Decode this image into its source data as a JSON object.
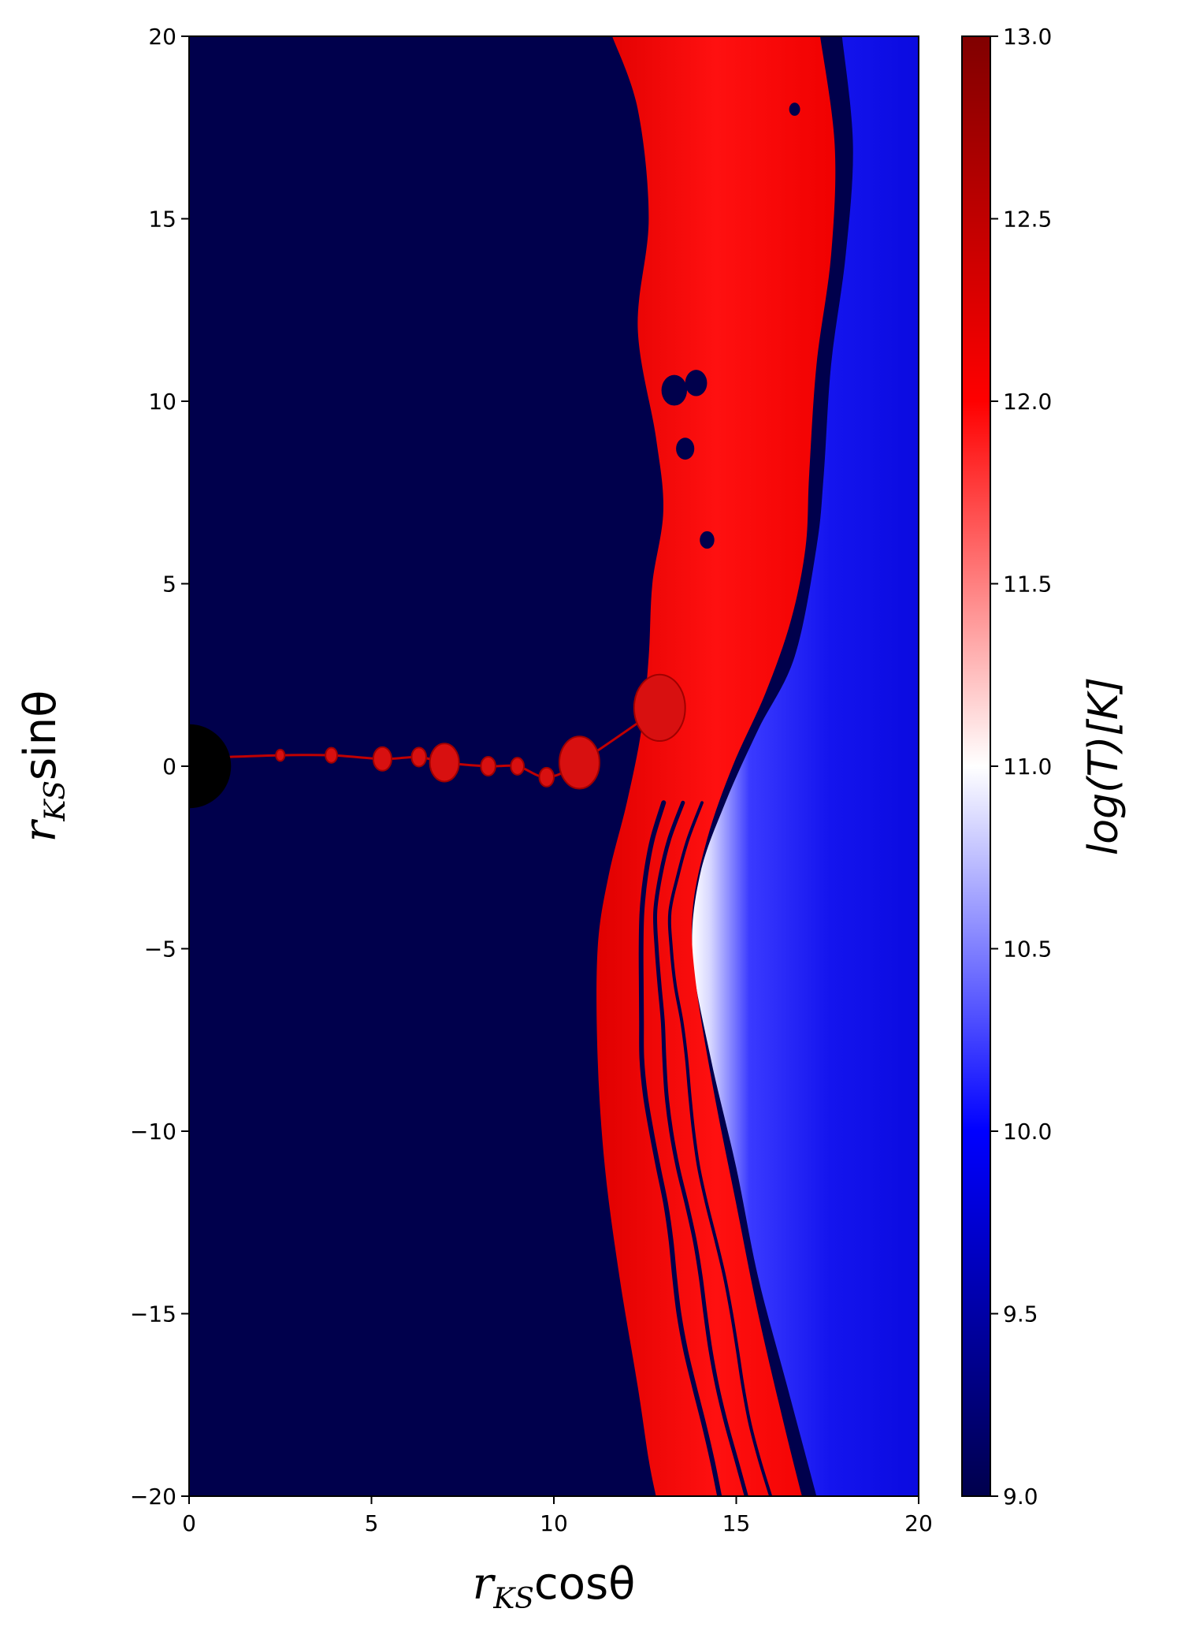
{
  "chart_data": {
    "type": "heatmap",
    "x": {
      "label_base": "r",
      "label_sub": "KS",
      "label_func": "cosθ",
      "range": [
        0,
        20
      ],
      "ticks": [
        0,
        5,
        10,
        15,
        20
      ],
      "tick_labels": [
        "0",
        "5",
        "10",
        "15",
        "20"
      ]
    },
    "y": {
      "label_base": "r",
      "label_sub": "KS",
      "label_func": "sinθ",
      "range": [
        -20,
        20
      ],
      "ticks": [
        -20,
        -15,
        -10,
        -5,
        0,
        5,
        10,
        15,
        20
      ],
      "tick_labels": [
        "−20",
        "−15",
        "−10",
        "−5",
        "0",
        "5",
        "10",
        "15",
        "20"
      ]
    },
    "colorbar": {
      "label": "log(T)[K]",
      "range": [
        9.0,
        13.0
      ],
      "ticks": [
        9.0,
        9.5,
        10.0,
        10.5,
        11.0,
        11.5,
        12.0,
        12.5,
        13.0
      ],
      "tick_labels": [
        "9.0",
        "9.5",
        "10.0",
        "10.5",
        "11.0",
        "11.5",
        "12.0",
        "12.5",
        "13.0"
      ],
      "colormap": "seismic",
      "colors": [
        "#00004c",
        "#0000ff",
        "#ffffff",
        "#ff0000",
        "#800000"
      ]
    },
    "background_value": 9.0,
    "black_hole": {
      "x": 0,
      "y": 0,
      "radius": 1.15,
      "color": "#000000"
    },
    "red_region_left_edge": [
      [
        11.6,
        20
      ],
      [
        12.3,
        18
      ],
      [
        12.6,
        15
      ],
      [
        12.3,
        12
      ],
      [
        12.8,
        9
      ],
      [
        13.0,
        7
      ],
      [
        12.7,
        5
      ],
      [
        12.6,
        3
      ],
      [
        12.4,
        1
      ],
      [
        12.0,
        -1
      ],
      [
        11.5,
        -3
      ],
      [
        11.2,
        -5
      ],
      [
        11.2,
        -8
      ],
      [
        11.4,
        -11
      ],
      [
        11.8,
        -14
      ],
      [
        12.3,
        -17
      ],
      [
        12.6,
        -19
      ],
      [
        12.8,
        -20
      ]
    ],
    "red_region_right_edge": [
      [
        17.3,
        20
      ],
      [
        17.7,
        17
      ],
      [
        17.6,
        14
      ],
      [
        17.2,
        11
      ],
      [
        17.0,
        8
      ],
      [
        16.9,
        6
      ],
      [
        16.5,
        4
      ],
      [
        15.8,
        2
      ],
      [
        14.9,
        0
      ],
      [
        14.2,
        -2
      ],
      [
        13.8,
        -4
      ],
      [
        13.9,
        -6
      ],
      [
        14.4,
        -9
      ],
      [
        15.0,
        -12
      ],
      [
        15.6,
        -15
      ],
      [
        16.3,
        -18
      ],
      [
        16.8,
        -20
      ]
    ],
    "hot_blue_boundary": [
      [
        17.9,
        20
      ],
      [
        18.2,
        17
      ],
      [
        18.0,
        14
      ],
      [
        17.6,
        11
      ],
      [
        17.4,
        8
      ],
      [
        17.2,
        6
      ],
      [
        16.6,
        3
      ],
      [
        15.6,
        1
      ],
      [
        14.7,
        -1
      ],
      [
        14.0,
        -3
      ],
      [
        13.8,
        -5.2
      ],
      [
        14.3,
        -8
      ],
      [
        15.0,
        -11
      ],
      [
        15.6,
        -14
      ],
      [
        16.4,
        -17
      ],
      [
        17.2,
        -20
      ]
    ],
    "blobs": [
      {
        "x": 2.5,
        "y": 0.3,
        "r": 0.12
      },
      {
        "x": 3.9,
        "y": 0.3,
        "r": 0.16
      },
      {
        "x": 5.3,
        "y": 0.2,
        "r": 0.25
      },
      {
        "x": 6.3,
        "y": 0.25,
        "r": 0.2
      },
      {
        "x": 7.0,
        "y": 0.1,
        "r": 0.4
      },
      {
        "x": 8.2,
        "y": 0.0,
        "r": 0.2
      },
      {
        "x": 9.0,
        "y": 0.0,
        "r": 0.18
      },
      {
        "x": 9.8,
        "y": -0.3,
        "r": 0.2
      },
      {
        "x": 10.7,
        "y": 0.1,
        "r": 0.55
      },
      {
        "x": 12.9,
        "y": 1.6,
        "r": 0.7
      }
    ]
  }
}
